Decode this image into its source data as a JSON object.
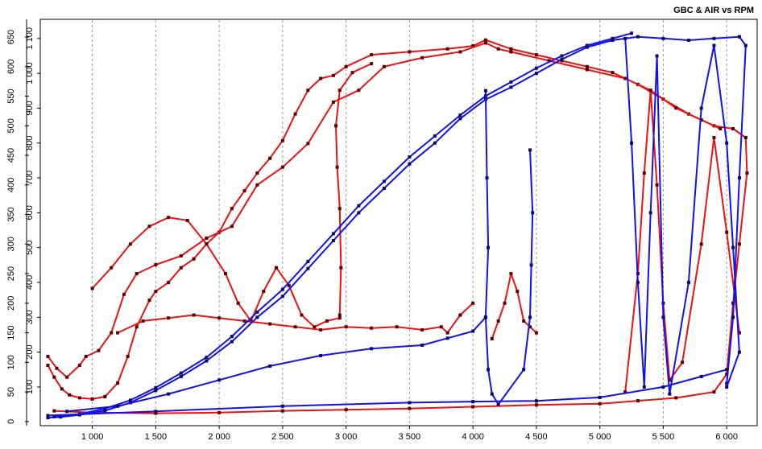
{
  "chart_data": {
    "type": "line",
    "title": "GBC & AIR vs RPM",
    "x_ticks": [
      1000,
      1500,
      2000,
      2500,
      3000,
      3500,
      4000,
      4500,
      5000,
      5500,
      6000
    ],
    "x_tick_labels": [
      "1 000",
      "1 500",
      "2 000",
      "2 500",
      "3 000",
      "3 500",
      "4 000",
      "4 500",
      "5 000",
      "5 500",
      "6 000"
    ],
    "xlim": [
      590,
      6240
    ],
    "y_left_ticks": [
      0,
      50,
      100,
      150,
      200,
      250,
      300,
      350,
      400,
      450,
      500,
      550,
      600,
      650
    ],
    "y_left_tick_labels": [
      "0",
      "50",
      "100",
      "150",
      "200",
      "250",
      "300",
      "350",
      "400",
      "450",
      "500",
      "550",
      "600",
      "650"
    ],
    "y_left_lim": [
      -7,
      680
    ],
    "y_right_ticks": [
      100,
      200,
      300,
      400,
      500,
      600,
      700,
      800,
      900,
      1000,
      1100
    ],
    "y_right_tick_labels": [
      "100",
      "200",
      "300",
      "400",
      "500",
      "600",
      "700",
      "800",
      "900",
      "1 000",
      "1 100"
    ],
    "y_right_lim": [
      -11,
      1155
    ],
    "grid": "vertical dashed",
    "series": [
      {
        "color": "#ee1111",
        "axis": "left",
        "values": [
          [
            650,
            95
          ],
          [
            700,
            75
          ],
          [
            760,
            55
          ],
          [
            820,
            45
          ],
          [
            900,
            40
          ],
          [
            1000,
            38
          ],
          [
            1100,
            42
          ],
          [
            1200,
            65
          ],
          [
            1280,
            110
          ],
          [
            1350,
            160
          ],
          [
            1450,
            205
          ],
          [
            1500,
            220
          ],
          [
            1600,
            235
          ],
          [
            1700,
            260
          ],
          [
            1800,
            275
          ],
          [
            1900,
            300
          ],
          [
            2000,
            320
          ],
          [
            2100,
            360
          ],
          [
            2200,
            390
          ],
          [
            2300,
            420
          ],
          [
            2400,
            445
          ],
          [
            2500,
            475
          ],
          [
            2600,
            520
          ],
          [
            2700,
            560
          ],
          [
            2800,
            580
          ],
          [
            2900,
            585
          ],
          [
            3000,
            600
          ],
          [
            3200,
            620
          ],
          [
            3500,
            625
          ],
          [
            3800,
            630
          ],
          [
            4000,
            635
          ],
          [
            4100,
            645
          ],
          [
            4300,
            630
          ],
          [
            4500,
            620
          ],
          [
            4700,
            610
          ],
          [
            4900,
            600
          ],
          [
            5100,
            590
          ],
          [
            5300,
            570
          ],
          [
            5500,
            545
          ],
          [
            5700,
            520
          ],
          [
            5900,
            500
          ],
          [
            6050,
            495
          ],
          [
            6150,
            480
          ],
          [
            6160,
            420
          ],
          [
            6100,
            300
          ],
          [
            6050,
            200
          ],
          [
            6000,
            80
          ],
          [
            5900,
            50
          ],
          [
            5600,
            40
          ],
          [
            5300,
            35
          ],
          [
            5000,
            30
          ],
          [
            4500,
            28
          ],
          [
            4000,
            25
          ],
          [
            3500,
            22
          ],
          [
            3000,
            20
          ],
          [
            2500,
            18
          ],
          [
            2000,
            15
          ],
          [
            1500,
            14
          ],
          [
            1000,
            15
          ],
          [
            700,
            18
          ]
        ]
      },
      {
        "color": "#ee1111",
        "axis": "left",
        "values": [
          [
            650,
            110
          ],
          [
            720,
            90
          ],
          [
            800,
            75
          ],
          [
            900,
            95
          ],
          [
            950,
            110
          ],
          [
            1050,
            120
          ],
          [
            1150,
            150
          ],
          [
            1250,
            215
          ],
          [
            1350,
            250
          ],
          [
            1500,
            265
          ],
          [
            1700,
            280
          ],
          [
            1900,
            310
          ],
          [
            2100,
            330
          ],
          [
            2300,
            400
          ],
          [
            2500,
            430
          ],
          [
            2700,
            470
          ],
          [
            2900,
            540
          ],
          [
            3100,
            560
          ],
          [
            3300,
            600
          ],
          [
            3600,
            615
          ],
          [
            3900,
            625
          ],
          [
            4100,
            640
          ],
          [
            4200,
            630
          ],
          [
            4300,
            625
          ],
          [
            4600,
            610
          ],
          [
            4900,
            595
          ],
          [
            5200,
            580
          ],
          [
            5400,
            560
          ],
          [
            5600,
            530
          ],
          [
            5800,
            510
          ],
          [
            5950,
            495
          ]
        ]
      },
      {
        "color": "#ee1111",
        "axis": "left",
        "values": [
          [
            1000,
            225
          ],
          [
            1150,
            260
          ],
          [
            1300,
            300
          ],
          [
            1450,
            330
          ],
          [
            1600,
            345
          ],
          [
            1750,
            340
          ],
          [
            1900,
            300
          ],
          [
            2050,
            250
          ],
          [
            2150,
            200
          ],
          [
            2250,
            170
          ],
          [
            2350,
            220
          ],
          [
            2450,
            260
          ],
          [
            2550,
            230
          ],
          [
            2650,
            180
          ],
          [
            2750,
            160
          ],
          [
            2850,
            170
          ],
          [
            2950,
            175
          ]
        ]
      },
      {
        "color": "#ee1111",
        "axis": "left",
        "values": [
          [
            2950,
            180
          ],
          [
            2960,
            260
          ],
          [
            2950,
            360
          ],
          [
            2930,
            430
          ],
          [
            2920,
            500
          ],
          [
            2950,
            560
          ],
          [
            3050,
            590
          ],
          [
            3200,
            605
          ]
        ]
      },
      {
        "color": "#ee1111",
        "axis": "left",
        "values": [
          [
            5200,
            50
          ],
          [
            5300,
            250
          ],
          [
            5350,
            420
          ],
          [
            5400,
            560
          ],
          [
            5450,
            400
          ],
          [
            5500,
            200
          ],
          [
            5550,
            70
          ],
          [
            5650,
            100
          ],
          [
            5800,
            300
          ],
          [
            5900,
            480
          ],
          [
            6000,
            320
          ],
          [
            6100,
            150
          ]
        ]
      },
      {
        "color": "#ee1111",
        "axis": "left",
        "values": [
          [
            1200,
            150
          ],
          [
            1400,
            170
          ],
          [
            1600,
            175
          ],
          [
            1800,
            180
          ],
          [
            2000,
            175
          ],
          [
            2200,
            170
          ],
          [
            2400,
            165
          ],
          [
            2600,
            160
          ],
          [
            2800,
            155
          ],
          [
            3000,
            160
          ],
          [
            3200,
            158
          ],
          [
            3400,
            160
          ],
          [
            3600,
            155
          ],
          [
            3750,
            160
          ],
          [
            3800,
            150
          ],
          [
            3900,
            180
          ],
          [
            4000,
            200
          ]
        ]
      },
      {
        "color": "#ee1111",
        "axis": "left",
        "values": [
          [
            4150,
            140
          ],
          [
            4200,
            170
          ],
          [
            4250,
            200
          ],
          [
            4300,
            250
          ],
          [
            4350,
            220
          ],
          [
            4400,
            170
          ],
          [
            4450,
            160
          ],
          [
            4500,
            150
          ]
        ]
      },
      {
        "color": "#1111ee",
        "axis": "right",
        "values": [
          [
            650,
            12
          ],
          [
            750,
            14
          ],
          [
            900,
            20
          ],
          [
            1100,
            32
          ],
          [
            1300,
            55
          ],
          [
            1500,
            90
          ],
          [
            1700,
            130
          ],
          [
            1900,
            175
          ],
          [
            2100,
            230
          ],
          [
            2300,
            300
          ],
          [
            2500,
            360
          ],
          [
            2700,
            440
          ],
          [
            2900,
            520
          ],
          [
            3100,
            600
          ],
          [
            3300,
            670
          ],
          [
            3500,
            740
          ],
          [
            3700,
            800
          ],
          [
            3900,
            870
          ],
          [
            4100,
            925
          ],
          [
            4300,
            960
          ],
          [
            4500,
            1000
          ],
          [
            4700,
            1040
          ],
          [
            4900,
            1075
          ],
          [
            5100,
            1095
          ],
          [
            5300,
            1105
          ],
          [
            5500,
            1100
          ],
          [
            5700,
            1095
          ],
          [
            5900,
            1100
          ],
          [
            6100,
            1105
          ],
          [
            6150,
            1080
          ],
          [
            6100,
            700
          ],
          [
            6050,
            300
          ],
          [
            6000,
            110
          ]
        ]
      },
      {
        "color": "#1111ee",
        "axis": "right",
        "values": [
          [
            700,
            15
          ],
          [
            900,
            22
          ],
          [
            1100,
            38
          ],
          [
            1300,
            62
          ],
          [
            1500,
            98
          ],
          [
            1700,
            140
          ],
          [
            1900,
            185
          ],
          [
            2100,
            245
          ],
          [
            2300,
            315
          ],
          [
            2500,
            380
          ],
          [
            2700,
            460
          ],
          [
            2900,
            540
          ],
          [
            3100,
            620
          ],
          [
            3300,
            690
          ],
          [
            3500,
            760
          ],
          [
            3700,
            820
          ],
          [
            3900,
            880
          ],
          [
            4100,
            935
          ],
          [
            4300,
            975
          ],
          [
            4500,
            1015
          ],
          [
            4700,
            1050
          ],
          [
            4900,
            1080
          ],
          [
            5100,
            1100
          ],
          [
            5250,
            1115
          ]
        ]
      },
      {
        "color": "#1111ee",
        "axis": "right",
        "values": [
          [
            4100,
            950
          ],
          [
            4110,
            700
          ],
          [
            4120,
            500
          ],
          [
            4100,
            300
          ],
          [
            4120,
            150
          ],
          [
            4150,
            80
          ],
          [
            4200,
            50
          ],
          [
            4400,
            150
          ],
          [
            4450,
            300
          ],
          [
            4460,
            450
          ],
          [
            4470,
            600
          ],
          [
            4450,
            780
          ]
        ]
      },
      {
        "color": "#1111ee",
        "axis": "right",
        "values": [
          [
            5200,
            1100
          ],
          [
            5250,
            800
          ],
          [
            5300,
            400
          ],
          [
            5350,
            100
          ],
          [
            5400,
            600
          ],
          [
            5450,
            1050
          ],
          [
            5500,
            300
          ],
          [
            5550,
            80
          ],
          [
            5700,
            400
          ],
          [
            5800,
            900
          ],
          [
            5900,
            1080
          ],
          [
            6000,
            800
          ],
          [
            6050,
            500
          ],
          [
            6100,
            200
          ],
          [
            6000,
            100
          ]
        ]
      },
      {
        "color": "#1111ee",
        "axis": "right",
        "values": [
          [
            800,
            30
          ],
          [
            1200,
            45
          ],
          [
            1600,
            80
          ],
          [
            2000,
            120
          ],
          [
            2400,
            160
          ],
          [
            2800,
            190
          ],
          [
            3200,
            210
          ],
          [
            3600,
            220
          ],
          [
            3800,
            240
          ],
          [
            4000,
            260
          ],
          [
            4100,
            300
          ]
        ]
      },
      {
        "color": "#1111ee",
        "axis": "right",
        "values": [
          [
            650,
            18
          ],
          [
            1500,
            30
          ],
          [
            2500,
            45
          ],
          [
            3500,
            55
          ],
          [
            4000,
            58
          ],
          [
            4500,
            60
          ],
          [
            5000,
            70
          ],
          [
            5500,
            100
          ],
          [
            5800,
            130
          ],
          [
            6000,
            150
          ]
        ]
      }
    ]
  }
}
